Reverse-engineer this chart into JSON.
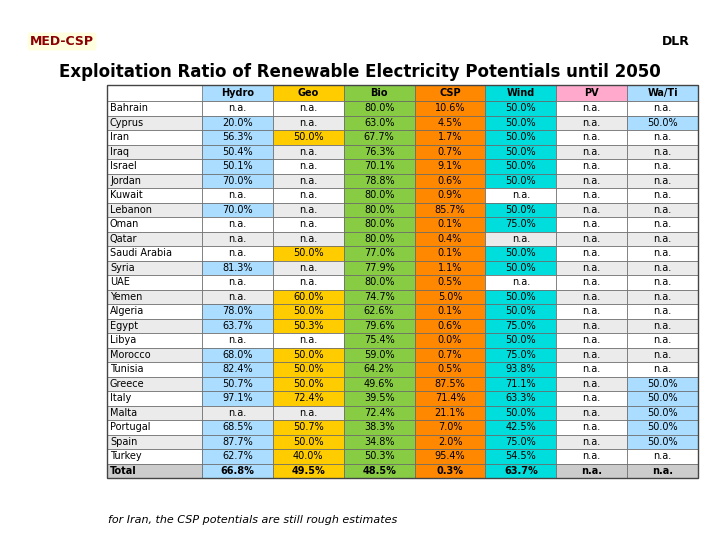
{
  "title": "Exploitation Ratio of Renewable Electricity Potentials until 2050",
  "footnote": "for Iran, the CSP potentials are still rough estimates",
  "columns": [
    "Hydro",
    "Geo",
    "Bio",
    "CSP",
    "Wind",
    "PV",
    "Wa/Ti"
  ],
  "col_colors": [
    "#aaddff",
    "#ffcc00",
    "#88cc44",
    "#ff8800",
    "#00dddd",
    "#ffaacc",
    "#aaddff"
  ],
  "rows": [
    [
      "Bahrain",
      "n.a.",
      "n.a.",
      "80.0%",
      "10.6%",
      "50.0%",
      "n.a.",
      "n.a."
    ],
    [
      "Cyprus",
      "20.0%",
      "n.a.",
      "63.0%",
      "4.5%",
      "50.0%",
      "n.a.",
      "50.0%"
    ],
    [
      "Iran",
      "56.3%",
      "50.0%",
      "67.7%",
      "1.7%",
      "50.0%",
      "n.a.",
      "n.a."
    ],
    [
      "Iraq",
      "50.4%",
      "n.a.",
      "76.3%",
      "0.7%",
      "50.0%",
      "n.a.",
      "n.a."
    ],
    [
      "Israel",
      "50.1%",
      "n.a.",
      "70.1%",
      "9.1%",
      "50.0%",
      "n.a.",
      "n.a."
    ],
    [
      "Jordan",
      "70.0%",
      "n.a.",
      "78.8%",
      "0.6%",
      "50.0%",
      "n.a.",
      "n.a."
    ],
    [
      "Kuwait",
      "n.a.",
      "n.a.",
      "80.0%",
      "0.9%",
      "n.a.",
      "n.a.",
      "n.a."
    ],
    [
      "Lebanon",
      "70.0%",
      "n.a.",
      "80.0%",
      "85.7%",
      "50.0%",
      "n.a.",
      "n.a."
    ],
    [
      "Oman",
      "n.a.",
      "n.a.",
      "80.0%",
      "0.1%",
      "75.0%",
      "n.a.",
      "n.a."
    ],
    [
      "Qatar",
      "n.a.",
      "n.a.",
      "80.0%",
      "0.4%",
      "n.a.",
      "n.a.",
      "n.a."
    ],
    [
      "Saudi Arabia",
      "n.a.",
      "50.0%",
      "77.0%",
      "0.1%",
      "50.0%",
      "n.a.",
      "n.a."
    ],
    [
      "Syria",
      "81.3%",
      "n.a.",
      "77.9%",
      "1.1%",
      "50.0%",
      "n.a.",
      "n.a."
    ],
    [
      "UAE",
      "n.a.",
      "n.a.",
      "80.0%",
      "0.5%",
      "n.a.",
      "n.a.",
      "n.a."
    ],
    [
      "Yemen",
      "n.a.",
      "60.0%",
      "74.7%",
      "5.0%",
      "50.0%",
      "n.a.",
      "n.a."
    ],
    [
      "Algeria",
      "78.0%",
      "50.0%",
      "62.6%",
      "0.1%",
      "50.0%",
      "n.a.",
      "n.a."
    ],
    [
      "Egypt",
      "63.7%",
      "50.3%",
      "79.6%",
      "0.6%",
      "75.0%",
      "n.a.",
      "n.a."
    ],
    [
      "Libya",
      "n.a.",
      "n.a.",
      "75.4%",
      "0.0%",
      "50.0%",
      "n.a.",
      "n.a."
    ],
    [
      "Morocco",
      "68.0%",
      "50.0%",
      "59.0%",
      "0.7%",
      "75.0%",
      "n.a.",
      "n.a."
    ],
    [
      "Tunisia",
      "82.4%",
      "50.0%",
      "64.2%",
      "0.5%",
      "93.8%",
      "n.a.",
      "n.a."
    ],
    [
      "Greece",
      "50.7%",
      "50.0%",
      "49.6%",
      "87.5%",
      "71.1%",
      "n.a.",
      "50.0%"
    ],
    [
      "Italy",
      "97.1%",
      "72.4%",
      "39.5%",
      "71.4%",
      "63.3%",
      "n.a.",
      "50.0%"
    ],
    [
      "Malta",
      "n.a.",
      "n.a.",
      "72.4%",
      "21.1%",
      "50.0%",
      "n.a.",
      "50.0%"
    ],
    [
      "Portugal",
      "68.5%",
      "50.7%",
      "38.3%",
      "7.0%",
      "42.5%",
      "n.a.",
      "50.0%"
    ],
    [
      "Spain",
      "87.7%",
      "50.0%",
      "34.8%",
      "2.0%",
      "75.0%",
      "n.a.",
      "50.0%"
    ],
    [
      "Turkey",
      "62.7%",
      "40.0%",
      "50.3%",
      "95.4%",
      "54.5%",
      "n.a.",
      "n.a."
    ],
    [
      "Total",
      "66.8%",
      "49.5%",
      "48.5%",
      "0.3%",
      "63.7%",
      "n.a.",
      "n.a."
    ]
  ]
}
